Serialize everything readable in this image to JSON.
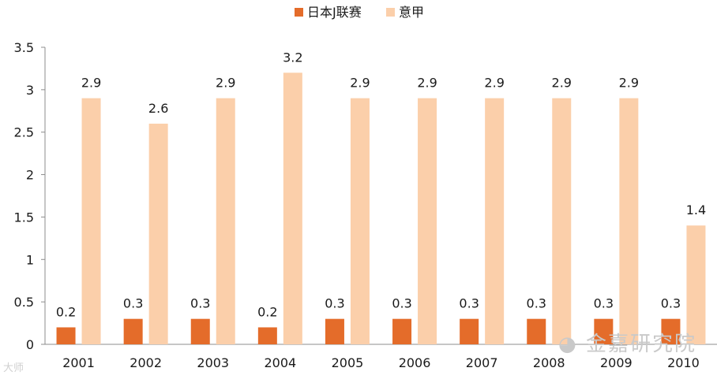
{
  "chart_data": {
    "type": "bar",
    "categories": [
      "2001",
      "2002",
      "2003",
      "2004",
      "2005",
      "2006",
      "2007",
      "2008",
      "2009",
      "2010"
    ],
    "series": [
      {
        "name": "日本J联赛",
        "color": "#E46C2A",
        "values": [
          0.2,
          0.3,
          0.3,
          0.2,
          0.3,
          0.3,
          0.3,
          0.3,
          0.3,
          0.3
        ],
        "labels": [
          "0.2",
          "0.3",
          "0.3",
          "0.2",
          "0.3",
          "0.3",
          "0.3",
          "0.3",
          "0.3",
          "0.3"
        ]
      },
      {
        "name": "意甲",
        "color": "#FBCFAA",
        "values": [
          2.9,
          2.6,
          2.9,
          3.2,
          2.9,
          2.9,
          2.9,
          2.9,
          2.9,
          1.4
        ],
        "labels": [
          "2.9",
          "2.6",
          "2.9",
          "3.2",
          "2.9",
          "2.9",
          "2.9",
          "2.9",
          "2.9",
          "1.4"
        ]
      }
    ],
    "ylim": [
      0,
      3.5
    ],
    "yticks": [
      "0",
      "0.5",
      "1",
      "1.5",
      "2",
      "2.5",
      "3",
      "3.5"
    ],
    "legend_position": "top-center",
    "grid": false
  },
  "watermark": {
    "right_text": "金嘉研究院",
    "left_text": "大师"
  }
}
